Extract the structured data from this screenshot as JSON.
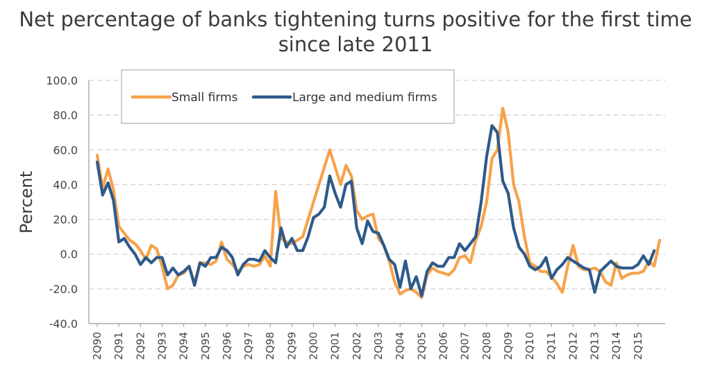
{
  "chart_data": {
    "type": "line",
    "title_line1": "Net percentage of banks tightening turns positive for the first time",
    "title_line2": "since late 2011",
    "xlabel": "",
    "ylabel": "Percent",
    "ylim": [
      -40,
      100
    ],
    "ytick_labels": [
      "-40.0",
      "-20.0",
      "0.0",
      "20.0",
      "40.0",
      "60.0",
      "80.0",
      "100.0"
    ],
    "grid": "horizontal dashed",
    "legend_position": "top-left",
    "tick_labels": [
      "2Q90",
      "2Q91",
      "2Q92",
      "2Q93",
      "2Q94",
      "2Q95",
      "2Q96",
      "2Q97",
      "2Q98",
      "2Q99",
      "2Q00",
      "2Q01",
      "2Q02",
      "2Q03",
      "2Q04",
      "2Q05",
      "2Q06",
      "2Q07",
      "2Q08",
      "2Q09",
      "2Q10",
      "2Q11",
      "2Q12",
      "2Q13",
      "2Q14",
      "2Q15"
    ],
    "colors": {
      "small": "#f7a24b",
      "large": "#2e5a8a",
      "grid": "#d0d0d0",
      "axis": "#999999"
    },
    "series": [
      {
        "name": "Small firms",
        "values": [
          57,
          38,
          49,
          37,
          16,
          12,
          8,
          6,
          2,
          -3,
          5,
          3,
          -7,
          -20,
          -18,
          -12,
          -11,
          -7,
          -17,
          -5,
          -5,
          -6,
          -4,
          7,
          -3,
          -6,
          -10,
          -7,
          -6,
          -7,
          -6,
          -1,
          -7,
          36,
          9,
          7,
          6,
          8,
          10,
          20,
          30,
          40,
          50,
          60,
          50,
          40,
          51,
          45,
          25,
          20,
          22,
          23,
          9,
          5,
          -4,
          -16,
          -23,
          -21,
          -20,
          -22,
          -25,
          -12,
          -8,
          -10,
          -11,
          -12,
          -9,
          -2,
          -1,
          -5,
          8,
          16,
          30,
          55,
          60,
          84,
          70,
          40,
          30,
          10,
          -5,
          -7,
          -10,
          -10,
          -13,
          -17,
          -22,
          -7,
          5,
          -7,
          -9,
          -9,
          -8,
          -10,
          -16,
          -18,
          -5,
          -14,
          -12,
          -11,
          -11,
          -10,
          -4,
          -7,
          8
        ]
      },
      {
        "name": "Large and medium firms",
        "values": [
          53,
          34,
          41,
          31,
          7,
          9,
          4,
          0,
          -6,
          -2,
          -5,
          -2,
          -2,
          -12,
          -8,
          -12,
          -10,
          -7,
          -18,
          -5,
          -7,
          -2,
          -2,
          4,
          2,
          -2,
          -12,
          -6,
          -3,
          -3,
          -4,
          2,
          -2,
          -5,
          15,
          4,
          9,
          2,
          2,
          10,
          21,
          23,
          27,
          45,
          35,
          27,
          40,
          42,
          15,
          6,
          19,
          13,
          12,
          5,
          -3,
          -6,
          -19,
          -4,
          -20,
          -13,
          -24,
          -10,
          -5,
          -7,
          -7,
          -2,
          -2,
          6,
          2,
          6,
          10,
          30,
          56,
          74,
          70,
          42,
          35,
          15,
          4,
          0,
          -7,
          -9,
          -7,
          -2,
          -14,
          -9,
          -6,
          -2,
          -4,
          -6,
          -8,
          -9,
          -22,
          -10,
          -7,
          -4,
          -7,
          -8,
          -8,
          -8,
          -6,
          -1,
          -6,
          2
        ]
      }
    ]
  }
}
